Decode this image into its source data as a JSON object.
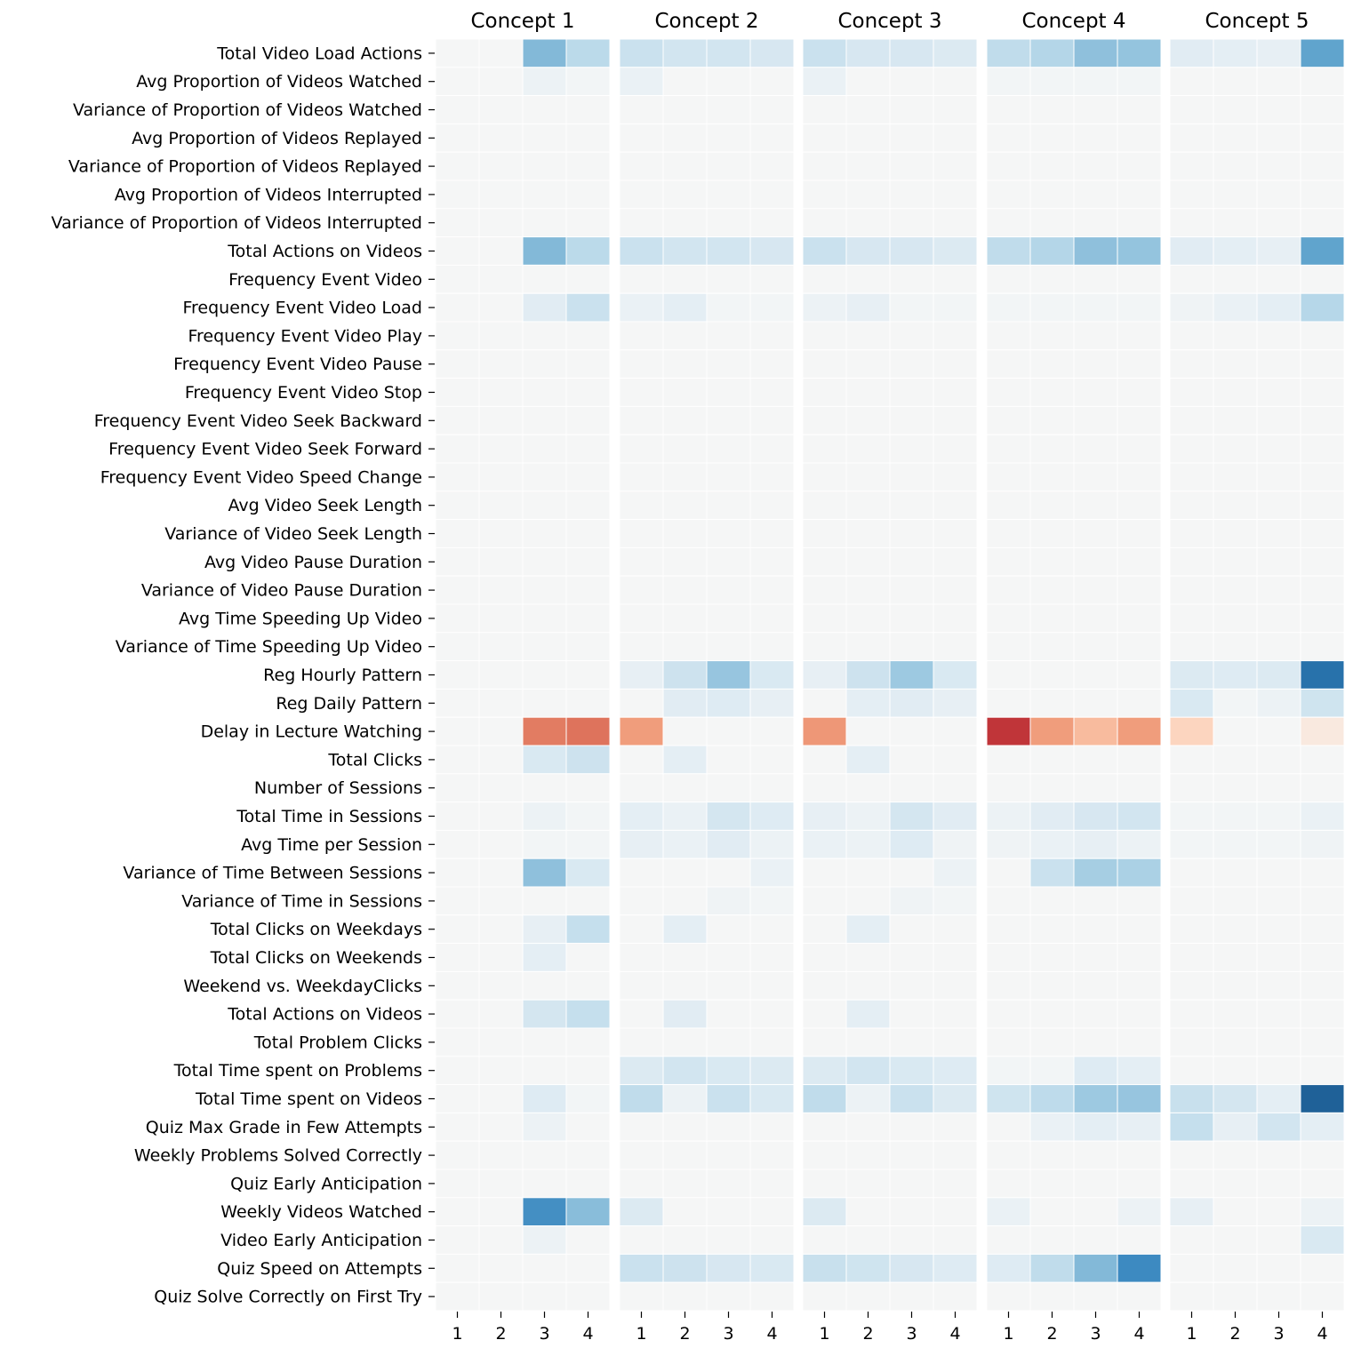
{
  "chart_data": {
    "type": "heatmap",
    "colormap": "diverging red-white-blue (RdBu), centered at 0",
    "value_range": [
      -1,
      1
    ],
    "colorbar": false,
    "panels": [
      "Concept 1",
      "Concept 2",
      "Concept 3",
      "Concept 4",
      "Concept 5"
    ],
    "columns": [
      "1",
      "2",
      "3",
      "4"
    ],
    "rows": [
      "Total Video Load Actions",
      "Avg Proportion of Videos Watched",
      "Variance of Proportion of Videos Watched",
      "Avg Proportion of Videos Replayed",
      "Variance of Proportion of Videos Replayed",
      "Avg Proportion of Videos Interrupted",
      "Variance of Proportion of Videos Interrupted",
      "Total Actions on Videos",
      "Frequency Event Video",
      "Frequency Event Video Load",
      "Frequency Event Video Play",
      "Frequency Event Video Pause",
      "Frequency Event Video Stop",
      "Frequency Event Video Seek Backward",
      "Frequency Event Video Seek Forward",
      "Frequency Event Video Speed Change",
      "Avg Video Seek Length",
      "Variance of Video Seek Length",
      "Avg Video Pause Duration",
      "Variance of Video Pause Duration",
      "Avg Time Speeding Up Video",
      "Variance of Time Speeding Up Video",
      "Reg Hourly Pattern",
      "Reg Daily Pattern",
      "Delay in Lecture Watching",
      "Total Clicks",
      "Number of Sessions",
      "Total Time in Sessions",
      "Avg Time per Session",
      "Variance of Time Between Sessions",
      "Variance of Time in Sessions",
      "Total Clicks on Weekdays",
      "Total Clicks on Weekends",
      "Weekend vs. WeekdayClicks",
      "Total Actions on Videos",
      "Total Problem Clicks",
      "Total Time spent on Problems",
      "Total Time spent on Videos",
      "Quiz Max Grade in Few Attempts",
      "Weekly Problems Solved Correctly",
      "Quiz Early Anticipation",
      "Weekly Videos Watched",
      "Video Early Anticipation",
      "Quiz Speed on Attempts",
      "Quiz Solve Correctly on First Try"
    ],
    "values": [
      [
        [
          0,
          0,
          0.42,
          0.22
        ],
        [
          0.16,
          0.13,
          0.13,
          0.11
        ],
        [
          0.16,
          0.11,
          0.11,
          0.09
        ],
        [
          0.2,
          0.25,
          0.38,
          0.36
        ],
        [
          0.07,
          0.06,
          0.05,
          0.55
        ]
      ],
      [
        [
          0,
          0,
          0.03,
          0.01
        ],
        [
          0.04,
          0,
          0,
          0
        ],
        [
          0.04,
          0,
          0,
          0
        ],
        [
          0.01,
          0.01,
          0.01,
          0.01
        ],
        [
          0,
          0,
          0,
          0
        ]
      ],
      [
        [
          0,
          0,
          0,
          0
        ],
        [
          0,
          0,
          0,
          0
        ],
        [
          0,
          0,
          0,
          0
        ],
        [
          0,
          0,
          0,
          0
        ],
        [
          0,
          0,
          0,
          0
        ]
      ],
      [
        [
          0,
          0,
          0,
          0
        ],
        [
          0,
          0,
          0,
          0
        ],
        [
          0,
          0,
          0,
          0
        ],
        [
          0,
          0,
          0,
          0
        ],
        [
          0,
          0,
          0,
          0
        ]
      ],
      [
        [
          0,
          0,
          0,
          0
        ],
        [
          0,
          0,
          0,
          0
        ],
        [
          0,
          0,
          0,
          0
        ],
        [
          0,
          0,
          0,
          0
        ],
        [
          0,
          0,
          0,
          0
        ]
      ],
      [
        [
          0,
          0,
          0,
          0
        ],
        [
          0,
          0,
          0,
          0
        ],
        [
          0,
          0,
          0,
          0
        ],
        [
          0,
          0,
          0,
          0
        ],
        [
          0,
          0,
          0,
          0
        ]
      ],
      [
        [
          0,
          0,
          0,
          0
        ],
        [
          0,
          0,
          0,
          0
        ],
        [
          0,
          0,
          0,
          0
        ],
        [
          0,
          0,
          0,
          0
        ],
        [
          0,
          0,
          0,
          0
        ]
      ],
      [
        [
          0,
          0,
          0.42,
          0.22
        ],
        [
          0.16,
          0.13,
          0.13,
          0.11
        ],
        [
          0.16,
          0.11,
          0.11,
          0.09
        ],
        [
          0.2,
          0.25,
          0.38,
          0.36
        ],
        [
          0.07,
          0.06,
          0.05,
          0.55
        ]
      ],
      [
        [
          0,
          0,
          0,
          0
        ],
        [
          0,
          0,
          0,
          0
        ],
        [
          0,
          0,
          0,
          0
        ],
        [
          0,
          0,
          0,
          0
        ],
        [
          0,
          0,
          0,
          0
        ]
      ],
      [
        [
          0,
          0,
          0.07,
          0.16
        ],
        [
          0.04,
          0.06,
          0.01,
          0.01
        ],
        [
          0.03,
          0.05,
          0.01,
          0.01
        ],
        [
          0.01,
          0.01,
          0.01,
          0.01
        ],
        [
          0.02,
          0.04,
          0.06,
          0.24
        ]
      ],
      [
        [
          0,
          0,
          0,
          0
        ],
        [
          0,
          0,
          0,
          0
        ],
        [
          0,
          0,
          0,
          0
        ],
        [
          0,
          0,
          0,
          0
        ],
        [
          0,
          0,
          0,
          0
        ]
      ],
      [
        [
          0,
          0,
          0,
          0
        ],
        [
          0,
          0,
          0,
          0
        ],
        [
          0,
          0,
          0,
          0
        ],
        [
          0,
          0,
          0,
          0
        ],
        [
          0,
          0,
          0,
          0
        ]
      ],
      [
        [
          0,
          0,
          0,
          0
        ],
        [
          0,
          0,
          0,
          0
        ],
        [
          0,
          0,
          0,
          0
        ],
        [
          0,
          0,
          0,
          0
        ],
        [
          0,
          0,
          0,
          0
        ]
      ],
      [
        [
          0,
          0,
          0,
          0
        ],
        [
          0,
          0,
          0,
          0
        ],
        [
          0,
          0,
          0,
          0
        ],
        [
          0,
          0,
          0,
          0
        ],
        [
          0,
          0,
          0,
          0
        ]
      ],
      [
        [
          0,
          0,
          0,
          0
        ],
        [
          0,
          0,
          0,
          0
        ],
        [
          0,
          0,
          0,
          0
        ],
        [
          0,
          0,
          0,
          0
        ],
        [
          0,
          0,
          0,
          0
        ]
      ],
      [
        [
          0,
          0,
          0,
          0
        ],
        [
          0,
          0,
          0,
          0
        ],
        [
          0,
          0,
          0,
          0
        ],
        [
          0,
          0,
          0,
          0
        ],
        [
          0,
          0,
          0,
          0
        ]
      ],
      [
        [
          0,
          0,
          0,
          0
        ],
        [
          0,
          0,
          0,
          0
        ],
        [
          0,
          0,
          0,
          0
        ],
        [
          0,
          0,
          0,
          0
        ],
        [
          0,
          0,
          0,
          0
        ]
      ],
      [
        [
          0,
          0,
          0,
          0
        ],
        [
          0,
          0,
          0,
          0
        ],
        [
          0,
          0,
          0,
          0
        ],
        [
          0,
          0,
          0,
          0
        ],
        [
          0,
          0,
          0,
          0
        ]
      ],
      [
        [
          0,
          0,
          0,
          0
        ],
        [
          0,
          0,
          0,
          0
        ],
        [
          0,
          0,
          0,
          0
        ],
        [
          0,
          0,
          0,
          0
        ],
        [
          0,
          0,
          0,
          0
        ]
      ],
      [
        [
          0,
          0,
          0,
          0
        ],
        [
          0,
          0,
          0,
          0
        ],
        [
          0,
          0,
          0,
          0
        ],
        [
          0,
          0,
          0,
          0
        ],
        [
          0,
          0,
          0,
          0
        ]
      ],
      [
        [
          0,
          0,
          0,
          0
        ],
        [
          0,
          0,
          0,
          0
        ],
        [
          0,
          0,
          0,
          0
        ],
        [
          0,
          0,
          0,
          0
        ],
        [
          0,
          0,
          0,
          0
        ]
      ],
      [
        [
          0,
          0,
          0,
          0
        ],
        [
          0,
          0,
          0,
          0
        ],
        [
          0,
          0,
          0,
          0
        ],
        [
          0,
          0,
          0,
          0
        ],
        [
          0,
          0,
          0,
          0
        ]
      ],
      [
        [
          0,
          0,
          0,
          0
        ],
        [
          0.05,
          0.15,
          0.35,
          0.1
        ],
        [
          0.05,
          0.15,
          0.33,
          0.1
        ],
        [
          0,
          0,
          0,
          0
        ],
        [
          0.09,
          0.08,
          0.09,
          0.8
        ]
      ],
      [
        [
          0,
          0,
          0,
          0
        ],
        [
          0,
          0.07,
          0.08,
          0.05
        ],
        [
          0,
          0.06,
          0.07,
          0.05
        ],
        [
          0,
          0,
          0,
          0
        ],
        [
          0.1,
          0.01,
          0.03,
          0.14
        ]
      ],
      [
        [
          0,
          0,
          -0.4,
          -0.43
        ],
        [
          -0.28,
          0,
          0,
          0
        ],
        [
          -0.3,
          0,
          0,
          0
        ],
        [
          -0.65,
          -0.28,
          -0.18,
          -0.28
        ],
        [
          -0.1,
          0,
          0,
          -0.04
        ]
      ],
      [
        [
          0,
          0,
          0.1,
          0.15
        ],
        [
          0,
          0.06,
          0,
          0
        ],
        [
          0,
          0.06,
          0,
          0
        ],
        [
          0,
          0,
          0,
          0
        ],
        [
          0,
          0,
          0,
          0
        ]
      ],
      [
        [
          0,
          0,
          0,
          0
        ],
        [
          0,
          0,
          0,
          0
        ],
        [
          0,
          0,
          0,
          0
        ],
        [
          0,
          0,
          0,
          0
        ],
        [
          0,
          0,
          0,
          0
        ]
      ],
      [
        [
          0,
          0,
          0.03,
          0.01
        ],
        [
          0.06,
          0.04,
          0.12,
          0.08
        ],
        [
          0.05,
          0.03,
          0.12,
          0.07
        ],
        [
          0.03,
          0.07,
          0.11,
          0.13
        ],
        [
          0.01,
          0.01,
          0.01,
          0.04
        ]
      ],
      [
        [
          0,
          0,
          0.01,
          0.01
        ],
        [
          0.05,
          0.04,
          0.07,
          0.03
        ],
        [
          0.04,
          0.03,
          0.08,
          0.02
        ],
        [
          0.02,
          0.04,
          0.05,
          0.03
        ],
        [
          0.01,
          0.01,
          0.01,
          0.02
        ]
      ],
      [
        [
          0,
          0,
          0.38,
          0.1
        ],
        [
          0,
          0,
          0,
          0.04
        ],
        [
          0,
          0,
          0,
          0.03
        ],
        [
          0,
          0.16,
          0.3,
          0.28
        ],
        [
          0,
          0,
          0,
          0
        ]
      ],
      [
        [
          0,
          0,
          0,
          0
        ],
        [
          0,
          0,
          0.02,
          0.01
        ],
        [
          0,
          0,
          0.02,
          0.01
        ],
        [
          0,
          0,
          0,
          0
        ],
        [
          0,
          0,
          0,
          0
        ]
      ],
      [
        [
          0,
          0,
          0.05,
          0.18
        ],
        [
          0,
          0.06,
          0,
          0
        ],
        [
          0,
          0.06,
          0,
          0
        ],
        [
          0,
          0,
          0,
          0
        ],
        [
          0,
          0,
          0,
          0
        ]
      ],
      [
        [
          0,
          0,
          0.06,
          0
        ],
        [
          0,
          0,
          0,
          0
        ],
        [
          0,
          0,
          0,
          0
        ],
        [
          0,
          0,
          0,
          0
        ],
        [
          0,
          0,
          0,
          0
        ]
      ],
      [
        [
          0,
          0,
          0,
          0
        ],
        [
          0,
          0,
          0,
          0
        ],
        [
          0,
          0,
          0,
          0
        ],
        [
          0,
          0,
          0,
          0
        ],
        [
          0,
          0,
          0,
          0
        ]
      ],
      [
        [
          0,
          0,
          0.12,
          0.18
        ],
        [
          0,
          0.07,
          0,
          0
        ],
        [
          0,
          0.06,
          0,
          0
        ],
        [
          0,
          0,
          0,
          0
        ],
        [
          0,
          0,
          0,
          0
        ]
      ],
      [
        [
          0,
          0,
          0,
          0
        ],
        [
          0,
          0,
          0,
          0
        ],
        [
          0,
          0,
          0,
          0
        ],
        [
          0,
          0,
          0,
          0
        ],
        [
          0,
          0,
          0,
          0
        ]
      ],
      [
        [
          0,
          0,
          0,
          0
        ],
        [
          0.09,
          0.13,
          0.1,
          0.09
        ],
        [
          0.09,
          0.13,
          0.1,
          0.08
        ],
        [
          0.01,
          0.01,
          0.08,
          0.06
        ],
        [
          0,
          0,
          0,
          0
        ]
      ],
      [
        [
          0,
          0,
          0.08,
          0.01
        ],
        [
          0.2,
          0.03,
          0.16,
          0.1
        ],
        [
          0.2,
          0.03,
          0.16,
          0.09
        ],
        [
          0.14,
          0.21,
          0.33,
          0.35
        ],
        [
          0.17,
          0.12,
          0.06,
          0.85
        ]
      ],
      [
        [
          0,
          0,
          0.03,
          0
        ],
        [
          0,
          0,
          0,
          0
        ],
        [
          0,
          0,
          0,
          0
        ],
        [
          0,
          0.04,
          0.06,
          0.05
        ],
        [
          0.18,
          0.05,
          0.13,
          0.06
        ]
      ],
      [
        [
          0,
          0,
          0,
          0
        ],
        [
          0,
          0,
          0,
          0
        ],
        [
          0,
          0,
          0,
          0
        ],
        [
          0,
          0,
          0,
          0
        ],
        [
          0,
          0,
          0,
          0
        ]
      ],
      [
        [
          0,
          0,
          0,
          0
        ],
        [
          0,
          0,
          0,
          0
        ],
        [
          0,
          0,
          0,
          0
        ],
        [
          0,
          0,
          0,
          0
        ],
        [
          0,
          0,
          0,
          0
        ]
      ],
      [
        [
          0,
          0,
          0.67,
          0.4
        ],
        [
          0.09,
          0,
          0,
          0
        ],
        [
          0.09,
          0,
          0,
          0
        ],
        [
          0.04,
          0,
          0,
          0.03
        ],
        [
          0.05,
          0,
          0,
          0.03
        ]
      ],
      [
        [
          0,
          0,
          0.03,
          0
        ],
        [
          0,
          0,
          0,
          0
        ],
        [
          0,
          0,
          0,
          0
        ],
        [
          0,
          0,
          0,
          0
        ],
        [
          0,
          0,
          0,
          0.1
        ]
      ],
      [
        [
          0,
          0,
          0,
          0
        ],
        [
          0.16,
          0.15,
          0.11,
          0.1
        ],
        [
          0.17,
          0.14,
          0.11,
          0.08
        ],
        [
          0.08,
          0.2,
          0.42,
          0.7
        ],
        [
          0,
          0,
          0,
          0
        ]
      ],
      [
        [
          0,
          0,
          0,
          0
        ],
        [
          0,
          0,
          0,
          0
        ],
        [
          0,
          0,
          0,
          0
        ],
        [
          0,
          0,
          0,
          0
        ],
        [
          0,
          0,
          0,
          0
        ]
      ]
    ]
  }
}
